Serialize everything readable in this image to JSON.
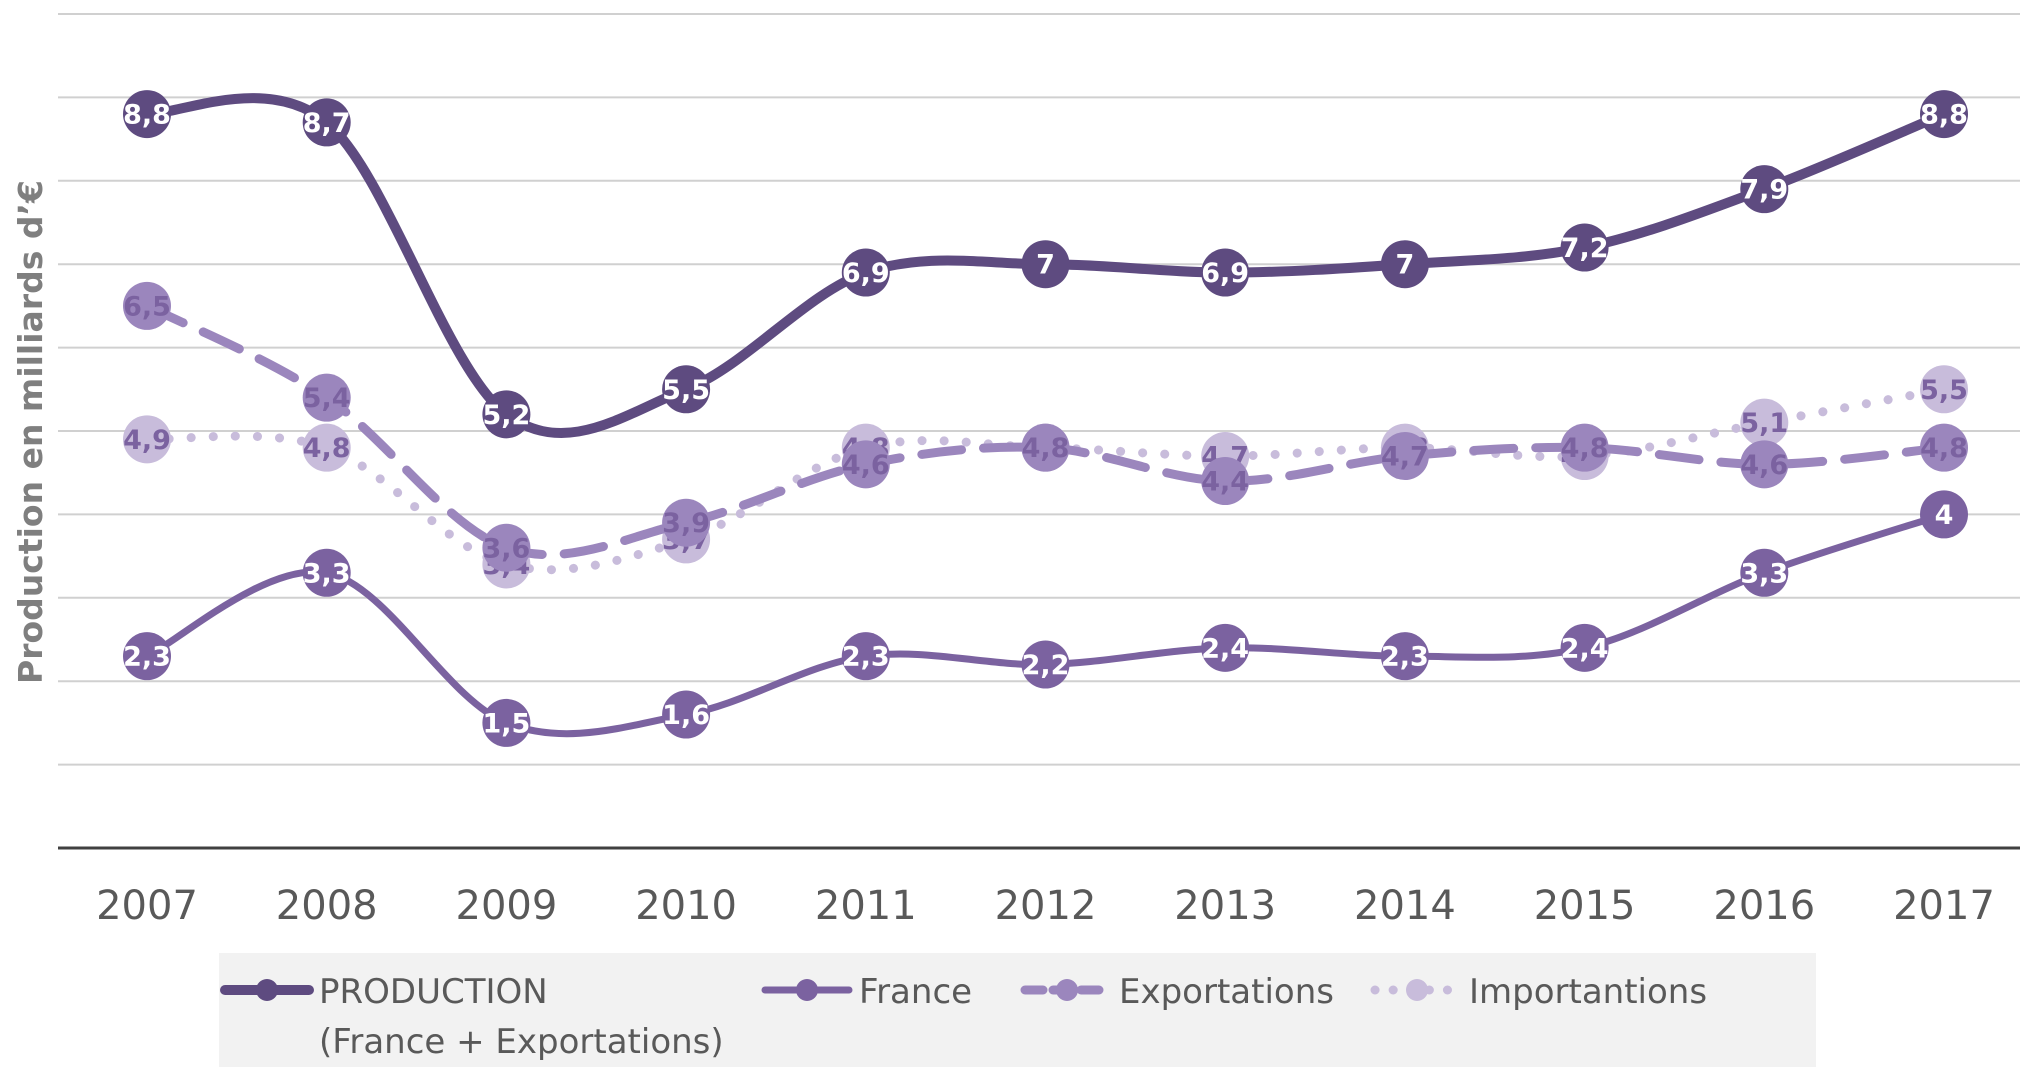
{
  "chart_data": {
    "type": "line",
    "y_label": "Production en milliards d’€",
    "categories": [
      "2007",
      "2008",
      "2009",
      "2010",
      "2011",
      "2012",
      "2013",
      "2014",
      "2015",
      "2016",
      "2017"
    ],
    "ylim": [
      0,
      10
    ],
    "yticks": [
      0,
      1,
      2,
      3,
      4,
      5,
      6,
      7,
      8,
      9,
      10
    ],
    "grid": true,
    "legend": "bottom",
    "series": [
      {
        "name": "PRODUCTION\n(France + Exportations)",
        "color": "#5e4b80",
        "style": "solid",
        "width": 10,
        "values": [
          8.8,
          8.7,
          5.2,
          5.5,
          6.9,
          7,
          6.9,
          7,
          7.2,
          7.9,
          8.8
        ],
        "value_labels": [
          "8,8",
          "8,7",
          "5,2",
          "5,5",
          "6,9",
          "7",
          "6,9",
          "7",
          "7,2",
          "7,9",
          "8,8"
        ]
      },
      {
        "name": "France",
        "color": "#7b62a0",
        "style": "solid",
        "width": 7,
        "values": [
          2.3,
          3.3,
          1.5,
          1.6,
          2.3,
          2.2,
          2.4,
          2.3,
          2.4,
          3.3,
          4
        ],
        "value_labels": [
          "2,3",
          "3,3",
          "1,5",
          "1,6",
          "2,3",
          "2,2",
          "2,4",
          "2,3",
          "2,4",
          "3,3",
          "4"
        ]
      },
      {
        "name": "Exportations",
        "color": "#9b86bd",
        "style": "dashed",
        "width": 9,
        "values": [
          6.5,
          5.4,
          3.6,
          3.9,
          4.6,
          4.8,
          4.4,
          4.7,
          4.8,
          4.6,
          4.8
        ],
        "value_labels": [
          "6,5",
          "5,4",
          "3,6",
          "3,9",
          "4,6",
          "4,8",
          "4,4",
          "4,7",
          "4,8",
          "4,6",
          "4,8"
        ]
      },
      {
        "name": "Importantions",
        "color": "#c8bcdb",
        "style": "dotted",
        "width": 9,
        "values": [
          4.9,
          4.8,
          3.4,
          3.7,
          4.8,
          4.8,
          4.7,
          4.8,
          4.7,
          5.1,
          5.5
        ],
        "value_labels": [
          "4,9",
          "4,8",
          "3,4",
          "3,7",
          "4,8",
          "4,8",
          "4,7",
          "4,8",
          "4,7",
          "5,1",
          "5,5"
        ]
      }
    ]
  }
}
